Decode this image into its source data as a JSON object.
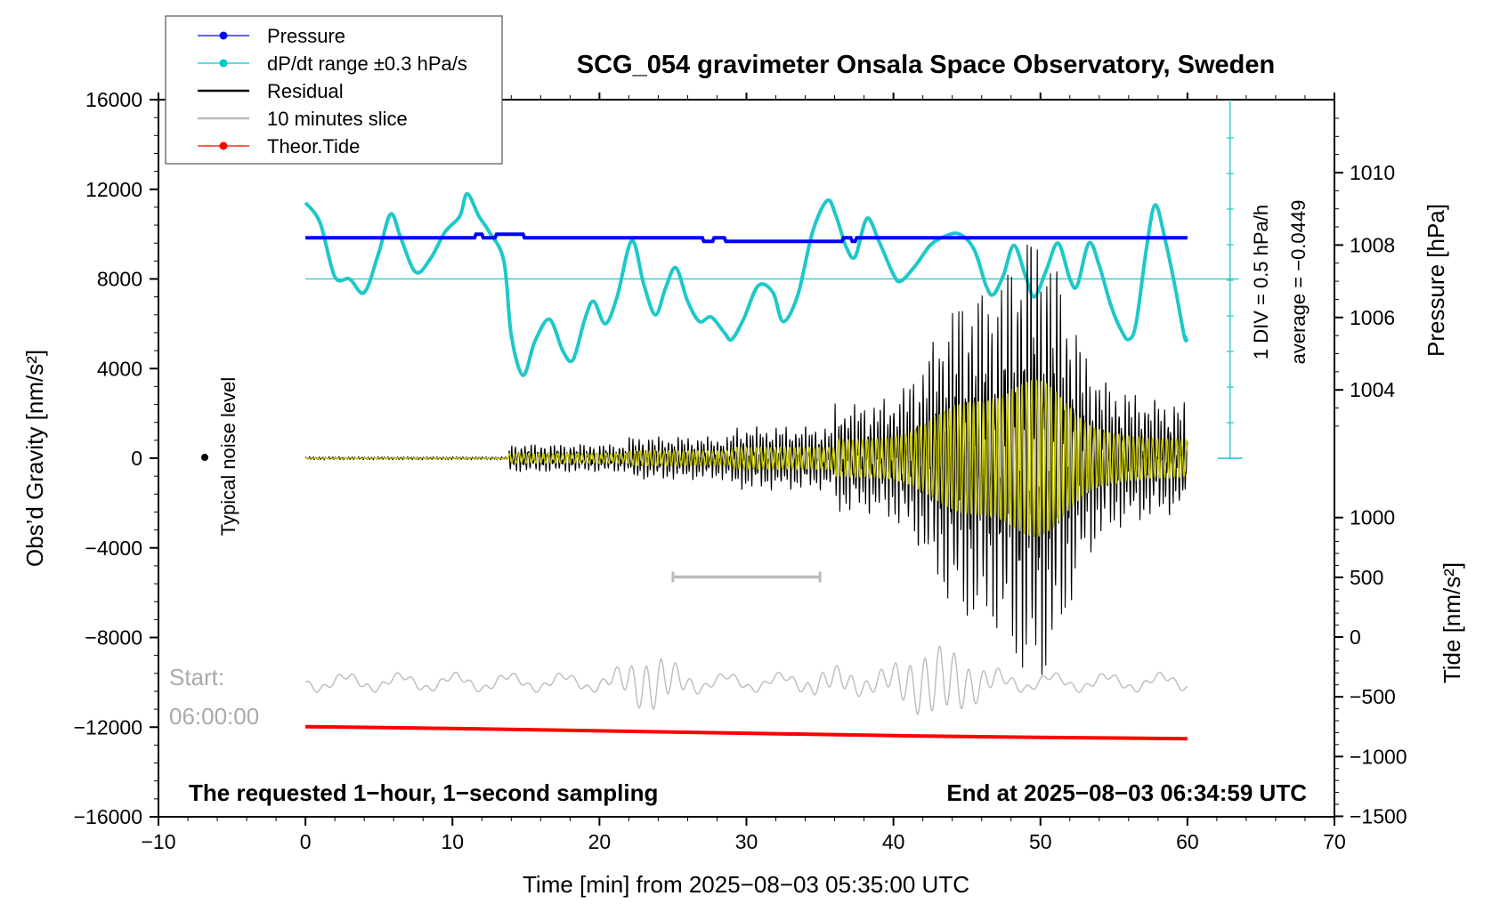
{
  "chart_data": {
    "type": "line",
    "title": "SCG_054 gravimeter Onsala Space Observatory, Sweden",
    "xlabel": "Time [min] from 2025−08−03 05:35:00 UTC",
    "ylabel_left": "Obs’d Gravity [nm/s²]",
    "ylabel_right_top": "Pressure [hPa]",
    "ylabel_right_bottom": "Tide [nm/s²]",
    "xlim": [
      -10,
      70
    ],
    "ylim": [
      -16000,
      16000
    ],
    "xticks": [
      "−10",
      "0",
      "10",
      "20",
      "30",
      "40",
      "50",
      "60",
      "70"
    ],
    "yticks_left": [
      "16000",
      "12000",
      "8000",
      "4000",
      "0",
      "−4000",
      "−8000",
      "−12000",
      "−16000"
    ],
    "pressure_ticks": [
      "1010",
      "1008",
      "1006",
      "1004"
    ],
    "tide_ticks": [
      "1000",
      "500",
      "0",
      "−500",
      "−1000",
      "−1500"
    ],
    "legend": [
      {
        "label": "Pressure",
        "color": "#0000ff",
        "marker": true
      },
      {
        "label": "dP/dt range ±0.3 hPa/s",
        "color": "#00c8c8",
        "marker": true
      },
      {
        "label": "Residual",
        "color": "#000000",
        "marker": false
      },
      {
        "label": "10 minutes slice",
        "color": "#bbbbbb",
        "marker": false
      },
      {
        "label": "Theor.Tide",
        "color": "#ff0000",
        "marker": true
      }
    ],
    "scale_bar": {
      "div_label": "1 DIV = 0.5 hPa/h",
      "average_label": "average = −0.0449"
    },
    "noise_label": "Typical noise level",
    "start_label": "Start:",
    "start_time": "06:00:00",
    "footer_left": "The requested 1−hour, 1−second sampling",
    "footer_right": "End at 2025−08−03 06:34:59 UTC",
    "colors": {
      "pressure": "#0000ff",
      "dpdt": "#1ec8c8",
      "residual": "#000000",
      "filtered": "#c8c800",
      "slice": "#bbbbbb",
      "tide": "#ff0000"
    },
    "series": {
      "pressure": {
        "unit": "hPa",
        "points": [
          [
            0,
            1008.2
          ],
          [
            11.5,
            1008.2
          ],
          [
            11.6,
            1008.3
          ],
          [
            12,
            1008.3
          ],
          [
            12.1,
            1008.2
          ],
          [
            12.9,
            1008.2
          ],
          [
            13,
            1008.3
          ],
          [
            14.8,
            1008.3
          ],
          [
            14.9,
            1008.2
          ],
          [
            27,
            1008.2
          ],
          [
            27.1,
            1008.1
          ],
          [
            27.7,
            1008.1
          ],
          [
            27.8,
            1008.2
          ],
          [
            28.5,
            1008.2
          ],
          [
            28.6,
            1008.1
          ],
          [
            36.5,
            1008.1
          ],
          [
            36.6,
            1008.2
          ],
          [
            37.1,
            1008.2
          ],
          [
            37.2,
            1008.1
          ],
          [
            37.4,
            1008.1
          ],
          [
            37.5,
            1008.2
          ],
          [
            60,
            1008.2
          ]
        ]
      },
      "dpdt": {
        "unit": "nm/s² axis",
        "points": [
          [
            0,
            11400
          ],
          [
            1,
            10500
          ],
          [
            2,
            8100
          ],
          [
            3,
            8000
          ],
          [
            4,
            7400
          ],
          [
            5,
            9200
          ],
          [
            5.8,
            10900
          ],
          [
            6.5,
            9800
          ],
          [
            7.5,
            8300
          ],
          [
            8.5,
            8900
          ],
          [
            9.5,
            10100
          ],
          [
            10.5,
            10800
          ],
          [
            11,
            11800
          ],
          [
            11.8,
            10800
          ],
          [
            12.5,
            10100
          ],
          [
            13.5,
            8800
          ],
          [
            14,
            5500
          ],
          [
            14.8,
            3700
          ],
          [
            15.6,
            5200
          ],
          [
            16.6,
            6200
          ],
          [
            17.5,
            4800
          ],
          [
            18.2,
            4400
          ],
          [
            19,
            6200
          ],
          [
            19.6,
            7000
          ],
          [
            20.4,
            6000
          ],
          [
            21.2,
            7200
          ],
          [
            22.2,
            9700
          ],
          [
            23,
            7800
          ],
          [
            23.8,
            6400
          ],
          [
            24.5,
            7600
          ],
          [
            25.2,
            8500
          ],
          [
            26,
            7000
          ],
          [
            26.8,
            6100
          ],
          [
            27.6,
            6300
          ],
          [
            28.5,
            5600
          ],
          [
            29,
            5300
          ],
          [
            29.8,
            6200
          ],
          [
            30.8,
            7700
          ],
          [
            31.8,
            7400
          ],
          [
            32.5,
            6100
          ],
          [
            33.5,
            7300
          ],
          [
            34.5,
            10100
          ],
          [
            35.5,
            11500
          ],
          [
            36.1,
            10800
          ],
          [
            36.8,
            9400
          ],
          [
            37.4,
            9000
          ],
          [
            38.2,
            10700
          ],
          [
            39,
            9700
          ],
          [
            40,
            8200
          ],
          [
            40.5,
            7900
          ],
          [
            41.5,
            8600
          ],
          [
            42.5,
            9500
          ],
          [
            43.5,
            9900
          ],
          [
            44.5,
            10000
          ],
          [
            45.5,
            9300
          ],
          [
            46.3,
            7700
          ],
          [
            46.8,
            7300
          ],
          [
            47.5,
            8200
          ],
          [
            48.2,
            9500
          ],
          [
            49,
            8100
          ],
          [
            49.6,
            7200
          ],
          [
            50.4,
            8400
          ],
          [
            51.2,
            9600
          ],
          [
            52,
            8000
          ],
          [
            52.5,
            7700
          ],
          [
            53.3,
            9600
          ],
          [
            54,
            8600
          ],
          [
            54.8,
            6800
          ],
          [
            55.5,
            5700
          ],
          [
            56,
            5300
          ],
          [
            56.5,
            6000
          ],
          [
            57.2,
            9300
          ],
          [
            57.8,
            11300
          ],
          [
            58.5,
            9700
          ],
          [
            59.2,
            7500
          ],
          [
            59.8,
            5400
          ],
          [
            60,
            5400
          ]
        ]
      },
      "tide": {
        "unit": "nm/s²",
        "points": [
          [
            0,
            -750
          ],
          [
            10,
            -765
          ],
          [
            20,
            -785
          ],
          [
            30,
            -805
          ],
          [
            40,
            -825
          ],
          [
            50,
            -840
          ],
          [
            60,
            -850
          ]
        ]
      }
    }
  }
}
